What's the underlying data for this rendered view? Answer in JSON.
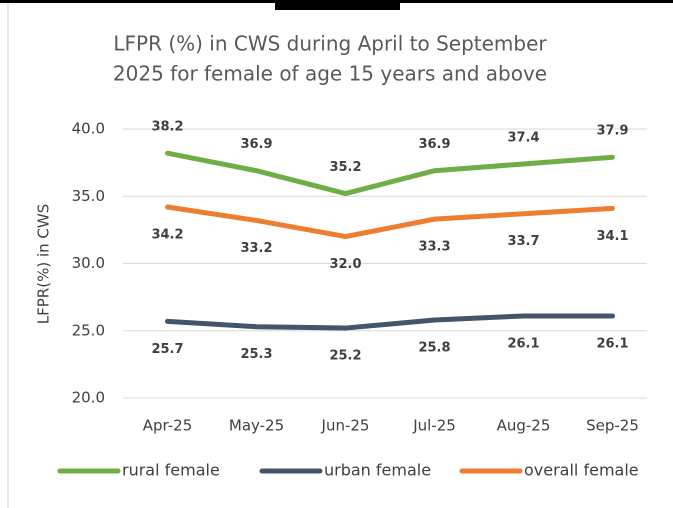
{
  "chart_data": {
    "type": "line",
    "title": [
      "LFPR (%) in CWS during April to September",
      "2025 for female of age 15 years and above"
    ],
    "y_label": "LFPR(%) in CWS",
    "categories": [
      "Apr-25",
      "May-25",
      "Jun-25",
      "Jul-25",
      "Aug-25",
      "Sep-25"
    ],
    "series": [
      {
        "name": "rural female",
        "color": "#70ad47",
        "values": [
          38.2,
          36.9,
          35.2,
          36.9,
          37.4,
          37.9
        ],
        "value_labels": [
          "38.2",
          "36.9",
          "35.2",
          "36.9",
          "37.4",
          "37.9"
        ],
        "label_position": "above"
      },
      {
        "name": "urban female",
        "color": "#44546a",
        "values": [
          25.7,
          25.3,
          25.2,
          25.8,
          26.1,
          26.1
        ],
        "value_labels": [
          "25.7",
          "25.3",
          "25.2",
          "25.8",
          "26.1",
          "26.1"
        ],
        "label_position": "below"
      },
      {
        "name": "overall female",
        "color": "#ed7d31",
        "values": [
          34.2,
          33.2,
          32.0,
          33.3,
          33.7,
          34.1
        ],
        "value_labels": [
          "34.2",
          "33.2",
          "32.0",
          "33.3",
          "33.7",
          "34.1"
        ],
        "label_position": "below"
      }
    ],
    "ylim": [
      20,
      40
    ],
    "yticks": [
      {
        "value": 20,
        "label": "20.0"
      },
      {
        "value": 25,
        "label": "25.0"
      },
      {
        "value": 30,
        "label": "30.0"
      },
      {
        "value": 35,
        "label": "35.0"
      },
      {
        "value": 40,
        "label": "40.0"
      }
    ],
    "grid": true,
    "legend": "bottom"
  }
}
